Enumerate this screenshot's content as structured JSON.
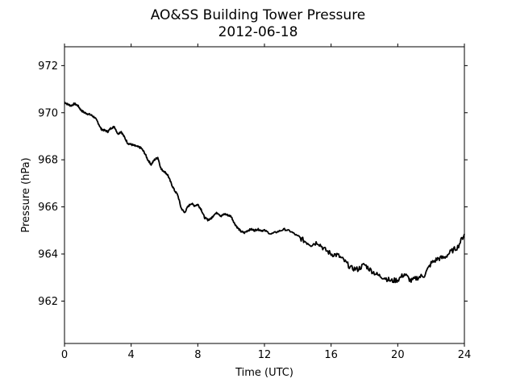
{
  "chart_data": {
    "type": "line",
    "title": "AO&SS Building Tower Pressure",
    "subtitle": "2012-06-18",
    "xlabel": "Time (UTC)",
    "ylabel": "Pressure (hPa)",
    "xlim": [
      0,
      24
    ],
    "ylim": [
      960.2,
      972.8
    ],
    "xticks": [
      0,
      4,
      8,
      12,
      16,
      20,
      24
    ],
    "yticks": [
      962,
      964,
      966,
      968,
      970,
      972
    ],
    "grid": false,
    "legend": "none",
    "line_color": "#000000",
    "series": [
      {
        "x": [
          0,
          0.2,
          0.4,
          0.6,
          0.8,
          1.0,
          1.2,
          1.4,
          1.6,
          1.8,
          2.0,
          2.2,
          2.4,
          2.6,
          2.8,
          3.0,
          3.2,
          3.4,
          3.6,
          3.8,
          4.0,
          4.2,
          4.4,
          4.6,
          4.8,
          5.0,
          5.2,
          5.4,
          5.6,
          5.8,
          6.0,
          6.2,
          6.4,
          6.6,
          6.8,
          7.0,
          7.2,
          7.4,
          7.6,
          7.8,
          8.0,
          8.2,
          8.4,
          8.6,
          8.8,
          9.0,
          9.2,
          9.4,
          9.6,
          9.8,
          10.0,
          10.2,
          10.4,
          10.6,
          10.8,
          11.0,
          11.2,
          11.4,
          11.6,
          11.8,
          12.0,
          12.4,
          12.8,
          13.2,
          13.6,
          14.0,
          14.4,
          14.8,
          15.2,
          15.6,
          16.0,
          16.4,
          16.8,
          17.2,
          17.6,
          18.0,
          18.4,
          18.8,
          19.2,
          19.6,
          20.0,
          20.4,
          20.8,
          21.2,
          21.6,
          22.0,
          22.4,
          22.8,
          23.2,
          23.6,
          24.0
        ],
        "y": [
          970.45,
          970.35,
          970.3,
          970.38,
          970.3,
          970.1,
          970.0,
          969.95,
          969.9,
          969.8,
          969.6,
          969.3,
          969.25,
          969.2,
          969.35,
          969.4,
          969.1,
          969.2,
          968.95,
          968.7,
          968.65,
          968.6,
          968.55,
          968.5,
          968.3,
          968.0,
          967.8,
          968.0,
          968.1,
          967.6,
          967.5,
          967.35,
          967.0,
          966.7,
          966.5,
          965.95,
          965.75,
          966.0,
          966.15,
          966.05,
          966.1,
          965.9,
          965.55,
          965.45,
          965.5,
          965.7,
          965.75,
          965.6,
          965.7,
          965.65,
          965.6,
          965.3,
          965.1,
          964.95,
          964.9,
          965.0,
          965.05,
          965.0,
          965.05,
          965.0,
          965.0,
          964.85,
          964.95,
          965.05,
          964.95,
          964.75,
          964.55,
          964.4,
          964.5,
          964.2,
          964.0,
          963.95,
          963.7,
          963.4,
          963.35,
          963.55,
          963.3,
          963.1,
          963.0,
          962.85,
          962.9,
          963.15,
          962.85,
          963.0,
          963.1,
          963.6,
          963.8,
          963.85,
          964.1,
          964.3,
          964.85
        ]
      }
    ]
  }
}
